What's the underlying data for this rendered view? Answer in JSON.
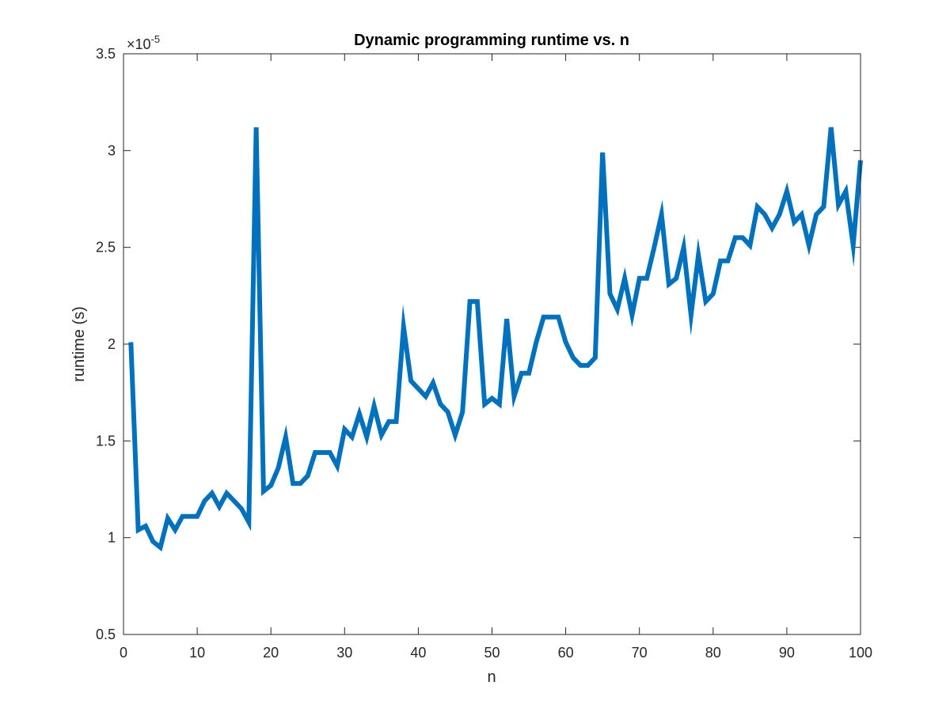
{
  "chart_data": {
    "type": "line",
    "title": "Dynamic programming runtime vs. n",
    "xlabel": "n",
    "ylabel": "runtime (s)",
    "xlim": [
      0,
      100
    ],
    "ylim": [
      0.5,
      3.5
    ],
    "y_scale_exponent_label": "×10",
    "y_scale_exponent": "-5",
    "x_ticks": [
      "0",
      "10",
      "20",
      "30",
      "40",
      "50",
      "60",
      "70",
      "80",
      "90",
      "100"
    ],
    "y_ticks": [
      "0.5",
      "1",
      "1.5",
      "2",
      "2.5",
      "3",
      "3.5"
    ],
    "grid": false,
    "series": [
      {
        "color": "#0072BD",
        "x": [
          1,
          2,
          3,
          4,
          5,
          6,
          7,
          8,
          9,
          10,
          11,
          12,
          13,
          14,
          15,
          16,
          17,
          18,
          19,
          20,
          21,
          22,
          23,
          24,
          25,
          26,
          27,
          28,
          29,
          30,
          31,
          32,
          33,
          34,
          35,
          36,
          37,
          38,
          39,
          40,
          41,
          42,
          43,
          44,
          45,
          46,
          47,
          48,
          49,
          50,
          51,
          52,
          53,
          54,
          55,
          56,
          57,
          58,
          59,
          60,
          61,
          62,
          63,
          64,
          65,
          66,
          67,
          68,
          69,
          70,
          71,
          72,
          73,
          74,
          75,
          76,
          77,
          78,
          79,
          80,
          81,
          82,
          83,
          84,
          85,
          86,
          87,
          88,
          89,
          90,
          91,
          92,
          93,
          94,
          95,
          96,
          97,
          98,
          99,
          100
        ],
        "y": [
          2.01,
          1.04,
          1.06,
          0.98,
          0.95,
          1.1,
          1.04,
          1.11,
          1.11,
          1.11,
          1.19,
          1.23,
          1.16,
          1.23,
          1.19,
          1.15,
          1.08,
          3.12,
          1.24,
          1.27,
          1.36,
          1.52,
          1.28,
          1.28,
          1.32,
          1.44,
          1.44,
          1.44,
          1.37,
          1.56,
          1.52,
          1.64,
          1.52,
          1.68,
          1.53,
          1.6,
          1.6,
          2.09,
          1.81,
          1.77,
          1.73,
          1.8,
          1.69,
          1.65,
          1.53,
          1.65,
          2.22,
          2.22,
          1.69,
          1.72,
          1.69,
          2.13,
          1.73,
          1.85,
          1.85,
          2.01,
          2.14,
          2.14,
          2.14,
          2.01,
          1.93,
          1.89,
          1.89,
          1.93,
          2.99,
          2.26,
          2.18,
          2.34,
          2.15,
          2.34,
          2.34,
          2.5,
          2.67,
          2.31,
          2.34,
          2.5,
          2.15,
          2.46,
          2.22,
          2.26,
          2.43,
          2.43,
          2.55,
          2.55,
          2.51,
          2.71,
          2.67,
          2.6,
          2.67,
          2.79,
          2.63,
          2.67,
          2.51,
          2.67,
          2.71,
          3.12,
          2.72,
          2.79,
          2.51,
          2.95
        ]
      }
    ]
  }
}
